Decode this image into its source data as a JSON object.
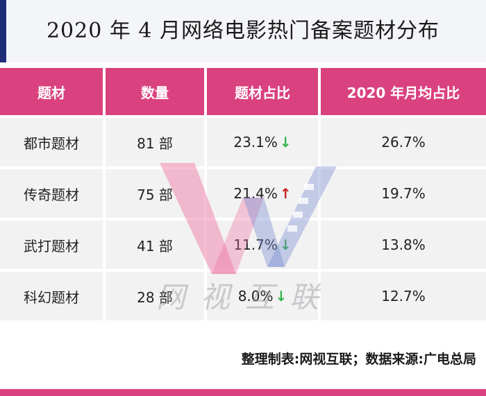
{
  "header": {
    "title": "2020 年 4 月网络电影热门备案题材分布"
  },
  "table": {
    "columns": [
      "题材",
      "数量",
      "题材占比",
      "2020 年月均占比"
    ],
    "rows": [
      {
        "genre": "都市题材",
        "count": "81 部",
        "share": "23.1%",
        "trend": "down",
        "trend_glyph": "↓",
        "avg": "26.7%"
      },
      {
        "genre": "传奇题材",
        "count": "75 部",
        "share": "21.4%",
        "trend": "up",
        "trend_glyph": "↑",
        "avg": "19.7%"
      },
      {
        "genre": "武打题材",
        "count": "41 部",
        "share": "11.7%",
        "trend": "down",
        "trend_glyph": "↓",
        "avg": "13.8%"
      },
      {
        "genre": "科幻题材",
        "count": "28 部",
        "share": "8.0%",
        "trend": "down",
        "trend_glyph": "↓",
        "avg": "12.7%"
      }
    ]
  },
  "chart_data": {
    "type": "table",
    "title": "2020 年 4 月网络电影热门备案题材分布",
    "columns": [
      "题材",
      "数量",
      "题材占比",
      "2020 年月均占比"
    ],
    "rows": [
      [
        "都市题材",
        "81 部",
        "23.1%",
        "26.7%"
      ],
      [
        "传奇题材",
        "75 部",
        "21.4%",
        "19.7%"
      ],
      [
        "武打题材",
        "41 部",
        "11.7%",
        "13.8%"
      ],
      [
        "科幻题材",
        "28 部",
        "8.0%",
        "12.7%"
      ]
    ],
    "trends": [
      "down",
      "up",
      "down",
      "down"
    ]
  },
  "watermark": {
    "text": "网视互联"
  },
  "footer": {
    "source": "整理制表:网视互联；数据来源:广电总局"
  },
  "colors": {
    "header_bg": "#d9427f",
    "row_bg": "#f2f2f2",
    "title_accent": "#1f2c78",
    "down_arrow": "#35b34a",
    "up_arrow": "#c81e1e"
  }
}
